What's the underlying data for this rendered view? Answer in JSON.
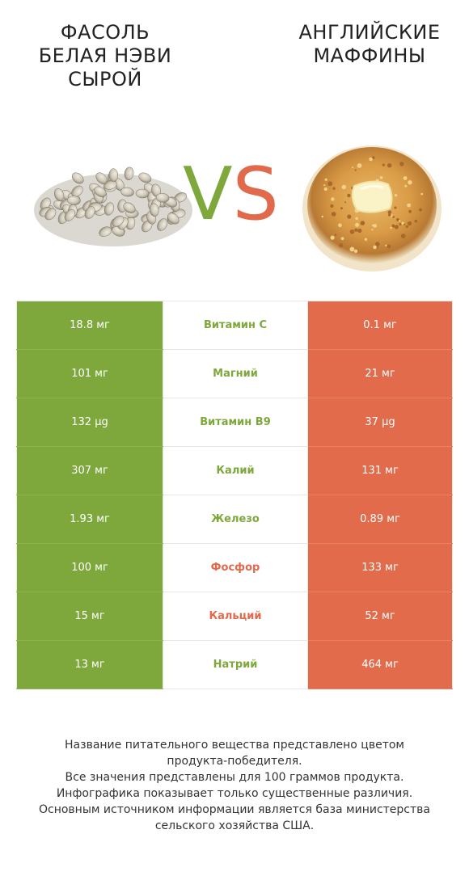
{
  "left_food": {
    "title_lines": [
      "ФАСОЛЬ",
      "БЕЛАЯ НЭВИ",
      "СЫРОЙ"
    ],
    "color": "#7ea83c"
  },
  "right_food": {
    "title_lines": [
      "АНГЛИЙСКИЕ",
      "МАФФИНЫ"
    ],
    "color": "#e26b4b"
  },
  "vs": {
    "v": "V",
    "s": "S"
  },
  "rows": [
    {
      "left": "18.8 мг",
      "name": "Витамин C",
      "right": "0.1 мг",
      "winner": "left"
    },
    {
      "left": "101 мг",
      "name": "Магний",
      "right": "21 мг",
      "winner": "left"
    },
    {
      "left": "132 µg",
      "name": "Витамин B9",
      "right": "37 µg",
      "winner": "left"
    },
    {
      "left": "307 мг",
      "name": "Калий",
      "right": "131 мг",
      "winner": "left"
    },
    {
      "left": "1.93 мг",
      "name": "Железо",
      "right": "0.89 мг",
      "winner": "left"
    },
    {
      "left": "100 мг",
      "name": "Фосфор",
      "right": "133 мг",
      "winner": "right"
    },
    {
      "left": "15 мг",
      "name": "Кальций",
      "right": "52 мг",
      "winner": "right"
    },
    {
      "left": "13 мг",
      "name": "Натрий",
      "right": "464 мг",
      "winner": "left"
    }
  ],
  "footer_lines": [
    "Название питательного вещества представлено цветом",
    "продукта-победителя.",
    "Все значения представлены для 100 граммов продукта.",
    "Инфографика показывает только существенные различия.",
    "Основным источником информации является база министерства",
    "сельского хозяйства США."
  ]
}
